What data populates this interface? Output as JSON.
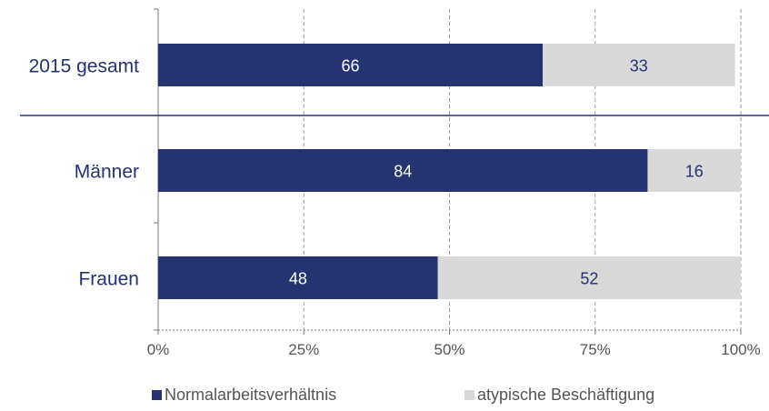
{
  "chart_data": {
    "type": "bar",
    "orientation": "horizontal",
    "stacked": true,
    "categories": [
      "2015 gesamt",
      "Männer",
      "Frauen"
    ],
    "series": [
      {
        "name": "Normalarbeitsverhältnis",
        "values": [
          66,
          84,
          48
        ],
        "color": "#253370",
        "label_color": "#ffffff"
      },
      {
        "name": "atypische Beschäftigung",
        "values": [
          33,
          16,
          52
        ],
        "color": "#d9d9d9",
        "label_color": "#253370"
      }
    ],
    "x_ticks": [
      "0%",
      "25%",
      "50%",
      "75%",
      "100%"
    ],
    "xlim": [
      0,
      100
    ],
    "grid": true,
    "legend_position": "bottom",
    "separator_after_category": "2015 gesamt"
  }
}
